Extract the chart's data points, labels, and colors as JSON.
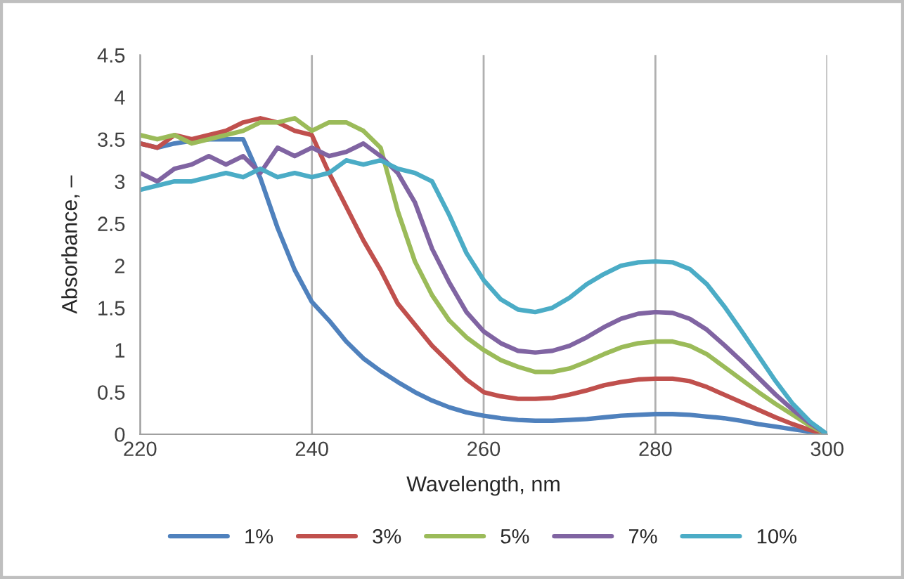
{
  "chart_data": {
    "type": "line",
    "xlabel": "Wavelength, nm",
    "ylabel": "Absorbance, –",
    "x": [
      220,
      222,
      224,
      226,
      228,
      230,
      232,
      234,
      236,
      238,
      240,
      242,
      244,
      246,
      248,
      250,
      252,
      254,
      256,
      258,
      260,
      262,
      264,
      266,
      268,
      270,
      272,
      274,
      276,
      278,
      280,
      282,
      284,
      286,
      288,
      290,
      292,
      294,
      296,
      298,
      300
    ],
    "series": [
      {
        "name": "1%",
        "color": "#4f81bd",
        "values": [
          3.45,
          3.4,
          3.45,
          3.48,
          3.5,
          3.5,
          3.5,
          3.04,
          2.45,
          1.95,
          1.57,
          1.35,
          1.1,
          0.9,
          0.75,
          0.62,
          0.5,
          0.4,
          0.32,
          0.26,
          0.22,
          0.19,
          0.17,
          0.16,
          0.16,
          0.17,
          0.18,
          0.2,
          0.22,
          0.23,
          0.24,
          0.24,
          0.23,
          0.21,
          0.19,
          0.16,
          0.12,
          0.09,
          0.06,
          0.03,
          0
        ]
      },
      {
        "name": "3%",
        "color": "#c0504d",
        "values": [
          3.45,
          3.4,
          3.55,
          3.5,
          3.55,
          3.6,
          3.7,
          3.75,
          3.7,
          3.6,
          3.55,
          3.1,
          2.7,
          2.3,
          1.95,
          1.55,
          1.3,
          1.05,
          0.85,
          0.65,
          0.5,
          0.45,
          0.42,
          0.42,
          0.43,
          0.47,
          0.52,
          0.58,
          0.62,
          0.65,
          0.66,
          0.66,
          0.63,
          0.56,
          0.47,
          0.38,
          0.29,
          0.2,
          0.12,
          0.05,
          0
        ]
      },
      {
        "name": "5%",
        "color": "#9bbb59",
        "values": [
          3.55,
          3.5,
          3.55,
          3.45,
          3.5,
          3.55,
          3.6,
          3.7,
          3.7,
          3.75,
          3.6,
          3.7,
          3.7,
          3.6,
          3.4,
          2.65,
          2.05,
          1.65,
          1.35,
          1.15,
          1.0,
          0.88,
          0.8,
          0.74,
          0.74,
          0.78,
          0.86,
          0.95,
          1.03,
          1.08,
          1.1,
          1.1,
          1.05,
          0.95,
          0.8,
          0.65,
          0.5,
          0.36,
          0.23,
          0.1,
          0
        ]
      },
      {
        "name": "7%",
        "color": "#8064a2",
        "values": [
          3.1,
          3.0,
          3.15,
          3.2,
          3.3,
          3.2,
          3.3,
          3.1,
          3.4,
          3.3,
          3.4,
          3.3,
          3.35,
          3.45,
          3.3,
          3.1,
          2.75,
          2.2,
          1.8,
          1.45,
          1.22,
          1.08,
          0.99,
          0.97,
          0.99,
          1.05,
          1.15,
          1.27,
          1.37,
          1.43,
          1.45,
          1.44,
          1.37,
          1.24,
          1.06,
          0.87,
          0.67,
          0.47,
          0.29,
          0.13,
          0
        ]
      },
      {
        "name": "10%",
        "color": "#4bacc6",
        "values": [
          2.9,
          2.95,
          3.0,
          3.0,
          3.05,
          3.1,
          3.05,
          3.15,
          3.05,
          3.1,
          3.05,
          3.1,
          3.25,
          3.2,
          3.25,
          3.15,
          3.1,
          3.0,
          2.6,
          2.15,
          1.83,
          1.6,
          1.48,
          1.45,
          1.5,
          1.62,
          1.78,
          1.9,
          2.0,
          2.04,
          2.05,
          2.04,
          1.96,
          1.78,
          1.52,
          1.23,
          0.93,
          0.63,
          0.36,
          0.15,
          0
        ]
      }
    ],
    "xlim": [
      220,
      300
    ],
    "xticks": [
      220,
      240,
      260,
      280,
      300
    ],
    "ylim": [
      0,
      4.5
    ],
    "yticks": [
      0,
      0.5,
      1,
      1.5,
      2,
      2.5,
      3,
      3.5,
      4,
      4.5
    ],
    "grid": "x",
    "legend": "bottom",
    "marker": "none",
    "line_style": "solid"
  }
}
